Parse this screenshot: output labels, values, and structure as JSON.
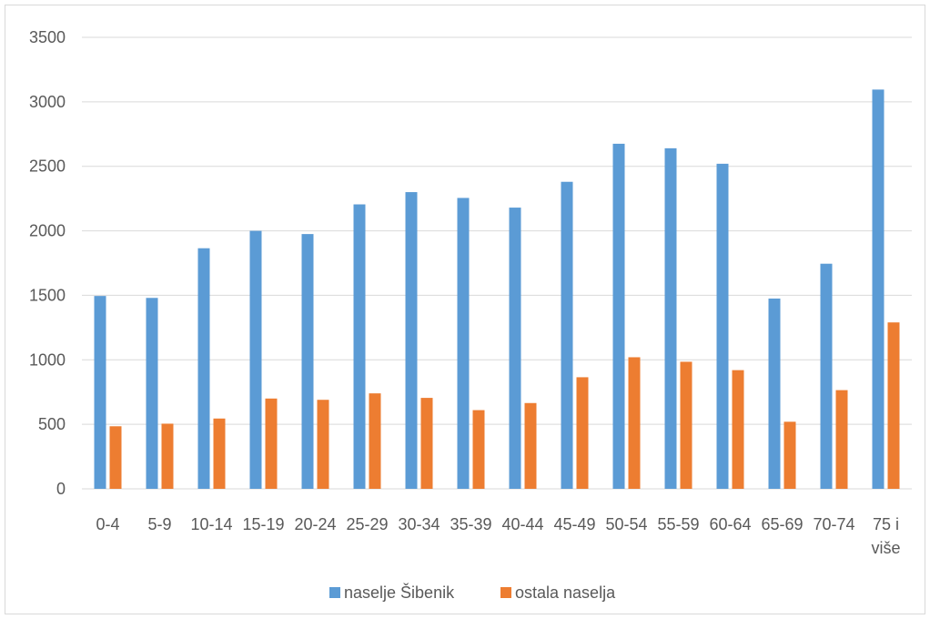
{
  "chart_data": {
    "type": "bar",
    "categories": [
      "0-4",
      "5-9",
      "10-14",
      "15-19",
      "20-24",
      "25-29",
      "30-34",
      "35-39",
      "40-44",
      "45-49",
      "50-54",
      "55-59",
      "60-64",
      "65-69",
      "70-74",
      "75 i više"
    ],
    "category_lines": [
      [
        "0-4"
      ],
      [
        "5-9"
      ],
      [
        "10-14"
      ],
      [
        "15-19"
      ],
      [
        "20-24"
      ],
      [
        "25-29"
      ],
      [
        "30-34"
      ],
      [
        "35-39"
      ],
      [
        "40-44"
      ],
      [
        "45-49"
      ],
      [
        "50-54"
      ],
      [
        "55-59"
      ],
      [
        "60-64"
      ],
      [
        "65-69"
      ],
      [
        "70-74"
      ],
      [
        "75 i",
        "više"
      ]
    ],
    "series": [
      {
        "name": "naselje Šibenik",
        "color": "#5b9bd5",
        "values": [
          1495,
          1480,
          1865,
          2000,
          1975,
          2205,
          2300,
          2255,
          2180,
          2380,
          2675,
          2640,
          2520,
          1475,
          1745,
          3095
        ]
      },
      {
        "name": "ostala naselja",
        "color": "#ed7d31",
        "values": [
          485,
          505,
          545,
          700,
          690,
          740,
          705,
          610,
          665,
          865,
          1020,
          985,
          920,
          520,
          765,
          1290
        ]
      }
    ],
    "ylim": [
      0,
      3500
    ],
    "yticks": [
      0,
      500,
      1000,
      1500,
      2000,
      2500,
      3000,
      3500
    ],
    "grid": true,
    "legend": "bottom-center",
    "title": "",
    "xlabel": "",
    "ylabel": ""
  }
}
